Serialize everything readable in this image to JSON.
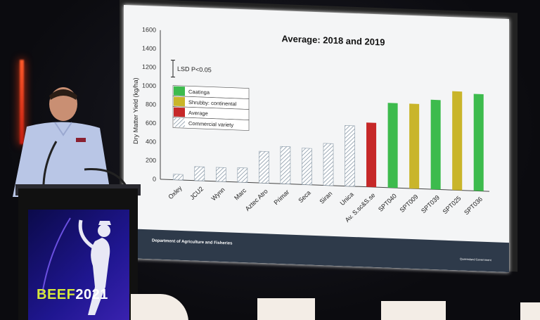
{
  "slide": {
    "title": "Average: 2018 and 2019",
    "footer_left": "Department of Agriculture and Fisheries",
    "footer_right": "Queensland Government"
  },
  "banner": {
    "text_main": "BEEF",
    "text_year": "2021"
  },
  "colors": {
    "caatinga": "#3dbb4d",
    "shrubby": "#c9b52a",
    "average": "#c62828",
    "commercial": "#8a9aa8",
    "slide_bg": "#f4f5f6"
  },
  "chart_data": {
    "type": "bar",
    "title": "Average: 2018 and 2019",
    "ylabel": "Dry Matter Yield (kg/ha)",
    "xlabel": "",
    "ylim": [
      0,
      1600
    ],
    "yticks": [
      0,
      200,
      400,
      600,
      800,
      1000,
      1200,
      1400,
      1600
    ],
    "grid": false,
    "annotation": "LSD P<0.05",
    "legend_position": "top-left",
    "legend": [
      {
        "label": "Caatinga",
        "color": "#3dbb4d",
        "hatched": false
      },
      {
        "label": "Shrubby: continental",
        "color": "#c9b52a",
        "hatched": false
      },
      {
        "label": "Average",
        "color": "#c62828",
        "hatched": false
      },
      {
        "label": "Commercial variety",
        "color": "#8a9aa8",
        "hatched": true
      }
    ],
    "categories": [
      "Oxley",
      "JCU2",
      "Wynn",
      "Marc",
      "Aztec Atro",
      "Primar",
      "Seca",
      "Siran",
      "Unica",
      "Av. S.sc&S.se",
      "SPT040",
      "SPT009",
      "SPT039",
      "SPT025",
      "SPT036"
    ],
    "values": [
      60,
      150,
      150,
      155,
      340,
      400,
      390,
      450,
      650,
      690,
      910,
      910,
      960,
      1060,
      1040
    ],
    "bar_types": [
      "commercial",
      "commercial",
      "commercial",
      "commercial",
      "commercial",
      "commercial",
      "commercial",
      "commercial",
      "commercial",
      "average",
      "caatinga",
      "shrubby",
      "caatinga",
      "shrubby",
      "caatinga"
    ]
  }
}
